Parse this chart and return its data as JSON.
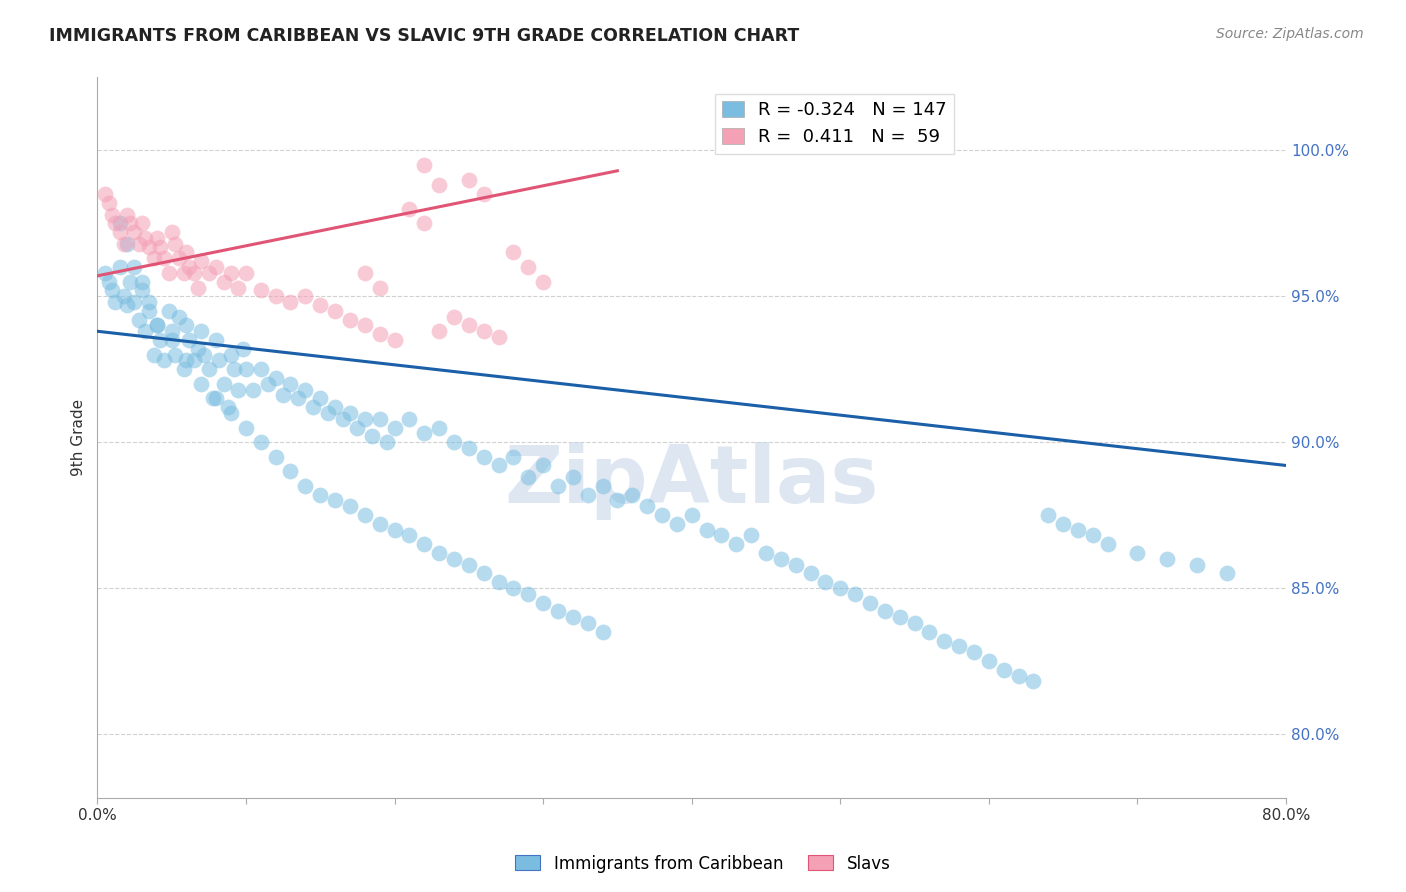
{
  "title": "IMMIGRANTS FROM CARIBBEAN VS SLAVIC 9TH GRADE CORRELATION CHART",
  "source": "Source: ZipAtlas.com",
  "ylabel": "9th Grade",
  "ytick_labels": [
    "80.0%",
    "85.0%",
    "90.0%",
    "95.0%",
    "100.0%"
  ],
  "ytick_values": [
    0.8,
    0.85,
    0.9,
    0.95,
    1.0
  ],
  "xlim": [
    0.0,
    0.8
  ],
  "ylim": [
    0.778,
    1.025
  ],
  "legend_blue_R": "-0.324",
  "legend_blue_N": "147",
  "legend_pink_R": "0.411",
  "legend_pink_N": "59",
  "blue_color": "#7bbde0",
  "pink_color": "#f4a0b5",
  "blue_line_color": "#1a5fa8",
  "pink_line_color": "#e05575",
  "watermark": "ZipAtlas",
  "watermark_color": "#c8d8e8",
  "blue_scatter_x": [
    0.005,
    0.008,
    0.01,
    0.012,
    0.015,
    0.018,
    0.02,
    0.022,
    0.025,
    0.028,
    0.03,
    0.032,
    0.035,
    0.038,
    0.04,
    0.042,
    0.045,
    0.048,
    0.05,
    0.052,
    0.055,
    0.058,
    0.06,
    0.062,
    0.065,
    0.068,
    0.07,
    0.072,
    0.075,
    0.078,
    0.08,
    0.082,
    0.085,
    0.088,
    0.09,
    0.092,
    0.095,
    0.098,
    0.1,
    0.105,
    0.11,
    0.115,
    0.12,
    0.125,
    0.13,
    0.135,
    0.14,
    0.145,
    0.15,
    0.155,
    0.16,
    0.165,
    0.17,
    0.175,
    0.18,
    0.185,
    0.19,
    0.195,
    0.2,
    0.21,
    0.22,
    0.23,
    0.24,
    0.25,
    0.26,
    0.27,
    0.28,
    0.29,
    0.3,
    0.31,
    0.32,
    0.33,
    0.34,
    0.35,
    0.36,
    0.37,
    0.38,
    0.39,
    0.4,
    0.41,
    0.42,
    0.43,
    0.44,
    0.45,
    0.46,
    0.47,
    0.48,
    0.49,
    0.5,
    0.51,
    0.52,
    0.53,
    0.54,
    0.55,
    0.56,
    0.57,
    0.58,
    0.59,
    0.6,
    0.61,
    0.62,
    0.63,
    0.64,
    0.65,
    0.66,
    0.67,
    0.68,
    0.7,
    0.72,
    0.74,
    0.76,
    0.015,
    0.02,
    0.025,
    0.03,
    0.035,
    0.04,
    0.05,
    0.06,
    0.07,
    0.08,
    0.09,
    0.1,
    0.11,
    0.12,
    0.13,
    0.14,
    0.15,
    0.16,
    0.17,
    0.18,
    0.19,
    0.2,
    0.21,
    0.22,
    0.23,
    0.24,
    0.25,
    0.26,
    0.27,
    0.28,
    0.29,
    0.3,
    0.31,
    0.32,
    0.33,
    0.34
  ],
  "blue_scatter_y": [
    0.958,
    0.955,
    0.952,
    0.948,
    0.96,
    0.95,
    0.947,
    0.955,
    0.948,
    0.942,
    0.952,
    0.938,
    0.945,
    0.93,
    0.94,
    0.935,
    0.928,
    0.945,
    0.938,
    0.93,
    0.943,
    0.925,
    0.94,
    0.935,
    0.928,
    0.932,
    0.938,
    0.93,
    0.925,
    0.915,
    0.935,
    0.928,
    0.92,
    0.912,
    0.93,
    0.925,
    0.918,
    0.932,
    0.925,
    0.918,
    0.925,
    0.92,
    0.922,
    0.916,
    0.92,
    0.915,
    0.918,
    0.912,
    0.915,
    0.91,
    0.912,
    0.908,
    0.91,
    0.905,
    0.908,
    0.902,
    0.908,
    0.9,
    0.905,
    0.908,
    0.903,
    0.905,
    0.9,
    0.898,
    0.895,
    0.892,
    0.895,
    0.888,
    0.892,
    0.885,
    0.888,
    0.882,
    0.885,
    0.88,
    0.882,
    0.878,
    0.875,
    0.872,
    0.875,
    0.87,
    0.868,
    0.865,
    0.868,
    0.862,
    0.86,
    0.858,
    0.855,
    0.852,
    0.85,
    0.848,
    0.845,
    0.842,
    0.84,
    0.838,
    0.835,
    0.832,
    0.83,
    0.828,
    0.825,
    0.822,
    0.82,
    0.818,
    0.875,
    0.872,
    0.87,
    0.868,
    0.865,
    0.862,
    0.86,
    0.858,
    0.855,
    0.975,
    0.968,
    0.96,
    0.955,
    0.948,
    0.94,
    0.935,
    0.928,
    0.92,
    0.915,
    0.91,
    0.905,
    0.9,
    0.895,
    0.89,
    0.885,
    0.882,
    0.88,
    0.878,
    0.875,
    0.872,
    0.87,
    0.868,
    0.865,
    0.862,
    0.86,
    0.858,
    0.855,
    0.852,
    0.85,
    0.848,
    0.845,
    0.842,
    0.84,
    0.838,
    0.835
  ],
  "pink_scatter_x": [
    0.005,
    0.008,
    0.01,
    0.012,
    0.015,
    0.018,
    0.02,
    0.022,
    0.025,
    0.028,
    0.03,
    0.032,
    0.035,
    0.038,
    0.04,
    0.042,
    0.045,
    0.048,
    0.05,
    0.052,
    0.055,
    0.058,
    0.06,
    0.062,
    0.065,
    0.068,
    0.07,
    0.075,
    0.08,
    0.085,
    0.09,
    0.095,
    0.1,
    0.11,
    0.12,
    0.13,
    0.14,
    0.15,
    0.16,
    0.17,
    0.18,
    0.19,
    0.2,
    0.21,
    0.22,
    0.23,
    0.24,
    0.25,
    0.26,
    0.27,
    0.28,
    0.29,
    0.3,
    0.25,
    0.26,
    0.22,
    0.23,
    0.18,
    0.19
  ],
  "pink_scatter_y": [
    0.985,
    0.982,
    0.978,
    0.975,
    0.972,
    0.968,
    0.978,
    0.975,
    0.972,
    0.968,
    0.975,
    0.97,
    0.967,
    0.963,
    0.97,
    0.967,
    0.963,
    0.958,
    0.972,
    0.968,
    0.963,
    0.958,
    0.965,
    0.96,
    0.958,
    0.953,
    0.962,
    0.958,
    0.96,
    0.955,
    0.958,
    0.953,
    0.958,
    0.952,
    0.95,
    0.948,
    0.95,
    0.947,
    0.945,
    0.942,
    0.94,
    0.937,
    0.935,
    0.98,
    0.975,
    0.938,
    0.943,
    0.94,
    0.938,
    0.936,
    0.965,
    0.96,
    0.955,
    0.99,
    0.985,
    0.995,
    0.988,
    0.958,
    0.953
  ],
  "blue_trendline_x": [
    0.0,
    0.8
  ],
  "blue_trendline_y": [
    0.938,
    0.892
  ],
  "pink_trendline_x": [
    0.0,
    0.35
  ],
  "pink_trendline_y": [
    0.957,
    0.993
  ],
  "legend_label_blue": "Immigrants from Caribbean",
  "legend_label_pink": "Slavs"
}
